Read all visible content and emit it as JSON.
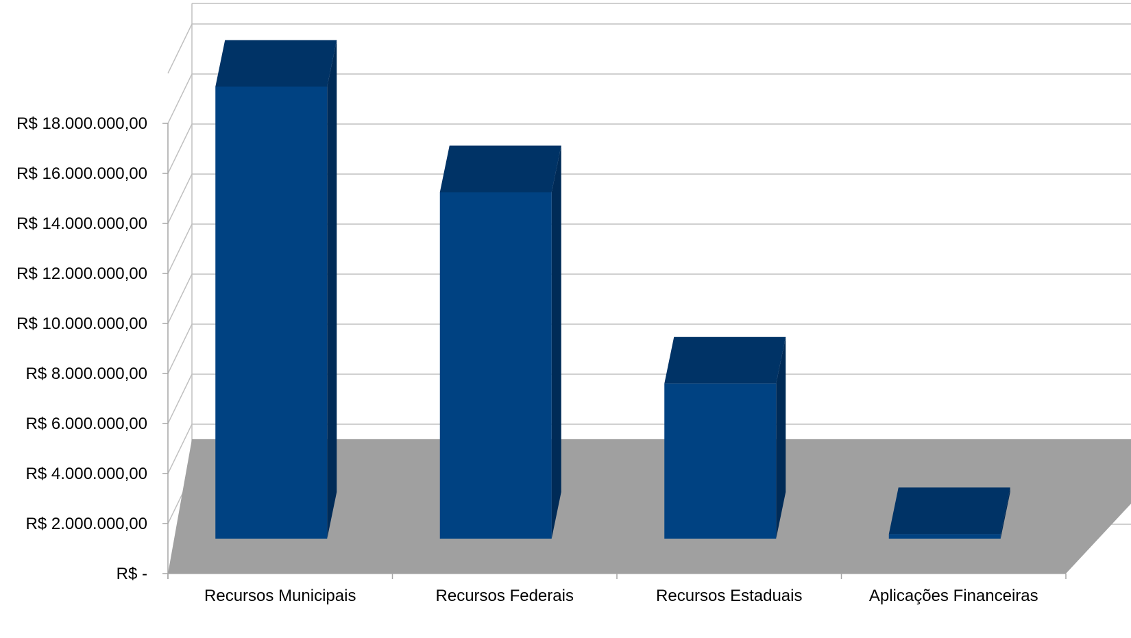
{
  "chart_data": {
    "type": "bar",
    "style": "3d-column",
    "categories": [
      "Recursos Municipais",
      "Recursos Federais",
      "Recursos Estaduais",
      "Aplicações Financeiras"
    ],
    "series": [
      {
        "values": [
          18070000,
          13850000,
          6200000,
          180000
        ]
      }
    ],
    "ylim": [
      0,
      18000000
    ],
    "y_ticks": [
      0,
      2000000,
      4000000,
      6000000,
      8000000,
      10000000,
      12000000,
      14000000,
      16000000,
      18000000
    ],
    "y_tick_labels": [
      "R$ -",
      "R$ 2.000.000,00",
      "R$ 4.000.000,00",
      "R$ 6.000.000,00",
      "R$ 8.000.000,00",
      "R$ 10.000.000,00",
      "R$ 12.000.000,00",
      "R$ 14.000.000,00",
      "R$ 16.000.000,00",
      "R$ 18.000.000,00"
    ],
    "grid": true,
    "legend": "none",
    "colors": {
      "bar_front": "#004282",
      "bar_top": "#003366",
      "bar_side": "#002b57",
      "floor": "#a0a0a0",
      "grid": "#c0c0c0",
      "axis": "#a6a6a6"
    }
  }
}
